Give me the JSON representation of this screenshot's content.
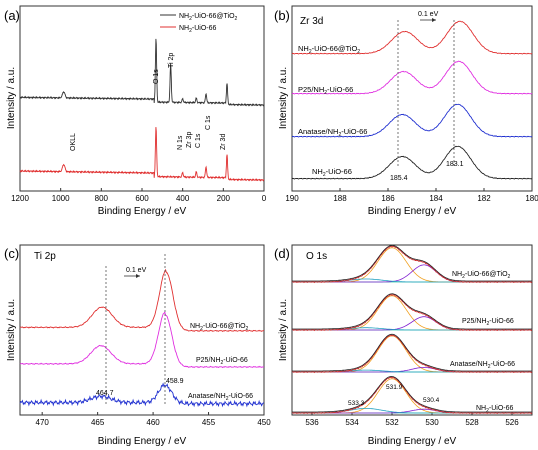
{
  "chart_data": [
    {
      "panel": "(a)",
      "type": "line",
      "title": "",
      "xlabel": "Binding Energy / eV",
      "ylabel": "Intensity / a.u.",
      "xlim": [
        1200,
        0
      ],
      "x_ticks": [
        "1200",
        "1000",
        "800",
        "600",
        "400",
        "200",
        "0"
      ],
      "legend": [
        {
          "name": "NH2-UiO-66@TiO2",
          "color": "#333333"
        },
        {
          "name": "NH2-UiO-66",
          "color": "#e03030"
        }
      ],
      "annotations": [
        "O 1s",
        "Ti 2p",
        "OKLL",
        "N 1s",
        "Zr 3p",
        "C 1s",
        "C 1s",
        "Zr 3d"
      ],
      "peaks_eV": [
        985,
        531,
        459,
        400,
        333,
        285,
        182
      ]
    },
    {
      "panel": "(b)",
      "type": "line",
      "title": "Zr 3d",
      "xlabel": "Binding Energy / eV",
      "ylabel": "Intensity / a.u.",
      "xlim": [
        190,
        180
      ],
      "x_ticks": [
        "190",
        "188",
        "186",
        "184",
        "182",
        "180"
      ],
      "series": [
        {
          "name": "NH2-UiO-66@TiO2",
          "color": "#e03030",
          "peaks": [
            185.3,
            183.0
          ]
        },
        {
          "name": "P25/NH2-UiO-66",
          "color": "#e030e0",
          "peaks": [
            185.35,
            183.05
          ]
        },
        {
          "name": "Anatase/NH2-UiO-66",
          "color": "#2030d0",
          "peaks": [
            185.4,
            183.1
          ]
        },
        {
          "name": "NH2-UiO-66",
          "color": "#222222",
          "peaks": [
            185.4,
            183.1
          ]
        }
      ],
      "annotations": [
        "0.1 eV",
        "185.4",
        "183.1"
      ]
    },
    {
      "panel": "(c)",
      "type": "line",
      "title": "Ti 2p",
      "xlabel": "Binding Energy / eV",
      "ylabel": "Intensity / a.u.",
      "xlim": [
        472,
        450
      ],
      "x_ticks": [
        "470",
        "465",
        "460",
        "455",
        "450"
      ],
      "series": [
        {
          "name": "NH2-UiO-66@TiO2",
          "color": "#e03030",
          "peaks": [
            464.6,
            458.8
          ]
        },
        {
          "name": "P25/NH2-UiO-66",
          "color": "#e030e0",
          "peaks": [
            464.7,
            458.9
          ]
        },
        {
          "name": "Anatase/NH2-UiO-66",
          "color": "#2030d0",
          "peaks": [
            464.7,
            458.9
          ]
        }
      ],
      "annotations": [
        "0.1 eV",
        "464.7",
        "458.9"
      ]
    },
    {
      "panel": "(d)",
      "type": "line",
      "title": "O 1s",
      "xlabel": "Binding Energy / eV",
      "ylabel": "Intensity / a.u.",
      "xlim": [
        537,
        525
      ],
      "x_ticks": [
        "536",
        "534",
        "532",
        "530",
        "528",
        "526"
      ],
      "series": [
        {
          "name": "NH2-UiO-66@TiO2"
        },
        {
          "name": "P25/NH2-UiO-66"
        },
        {
          "name": "Anatase/NH2-UiO-66"
        },
        {
          "name": "NH2-UiO-66"
        }
      ],
      "components_eV": [
        533.3,
        531.9,
        530.4
      ],
      "annotations": [
        "533.3",
        "531.9",
        "530.4"
      ]
    }
  ],
  "labels": {
    "a_leg1_main": "NH",
    "a_leg1_sub": "2",
    "a_leg1_rest": "-UiO-66@TiO",
    "a_leg1_sub2": "2",
    "a_leg2_main": "NH",
    "a_leg2_sub": "2",
    "a_leg2_rest": "-UiO-66",
    "b_s1": "NH",
    "b_s1_rest": "-UiO-66@TiO",
    "b_s2": "P25/NH",
    "b_s2_rest": "-UiO-66",
    "b_s3": "Anatase/NH",
    "b_s3_rest": "-UiO-66",
    "b_s4": "NH",
    "b_s4_rest": "-UiO-66",
    "sub2": "2",
    "c_s1": "NH",
    "c_s1_rest": "-UiO-66@TiO",
    "c_s2": "P25/NH",
    "c_s2_rest": "-UiO-66",
    "c_s3": "Anatase/NH",
    "c_s3_rest": "-UiO-66",
    "d_s1": "NH",
    "d_s1_rest": "-UiO-66@TiO",
    "d_s2": "P25/NH",
    "d_s2_rest": "-UiO-66",
    "d_s3": "Anatase/NH",
    "d_s3_rest": "-UiO-66",
    "d_s4": "NH",
    "d_s4_rest": "-UiO-66"
  }
}
